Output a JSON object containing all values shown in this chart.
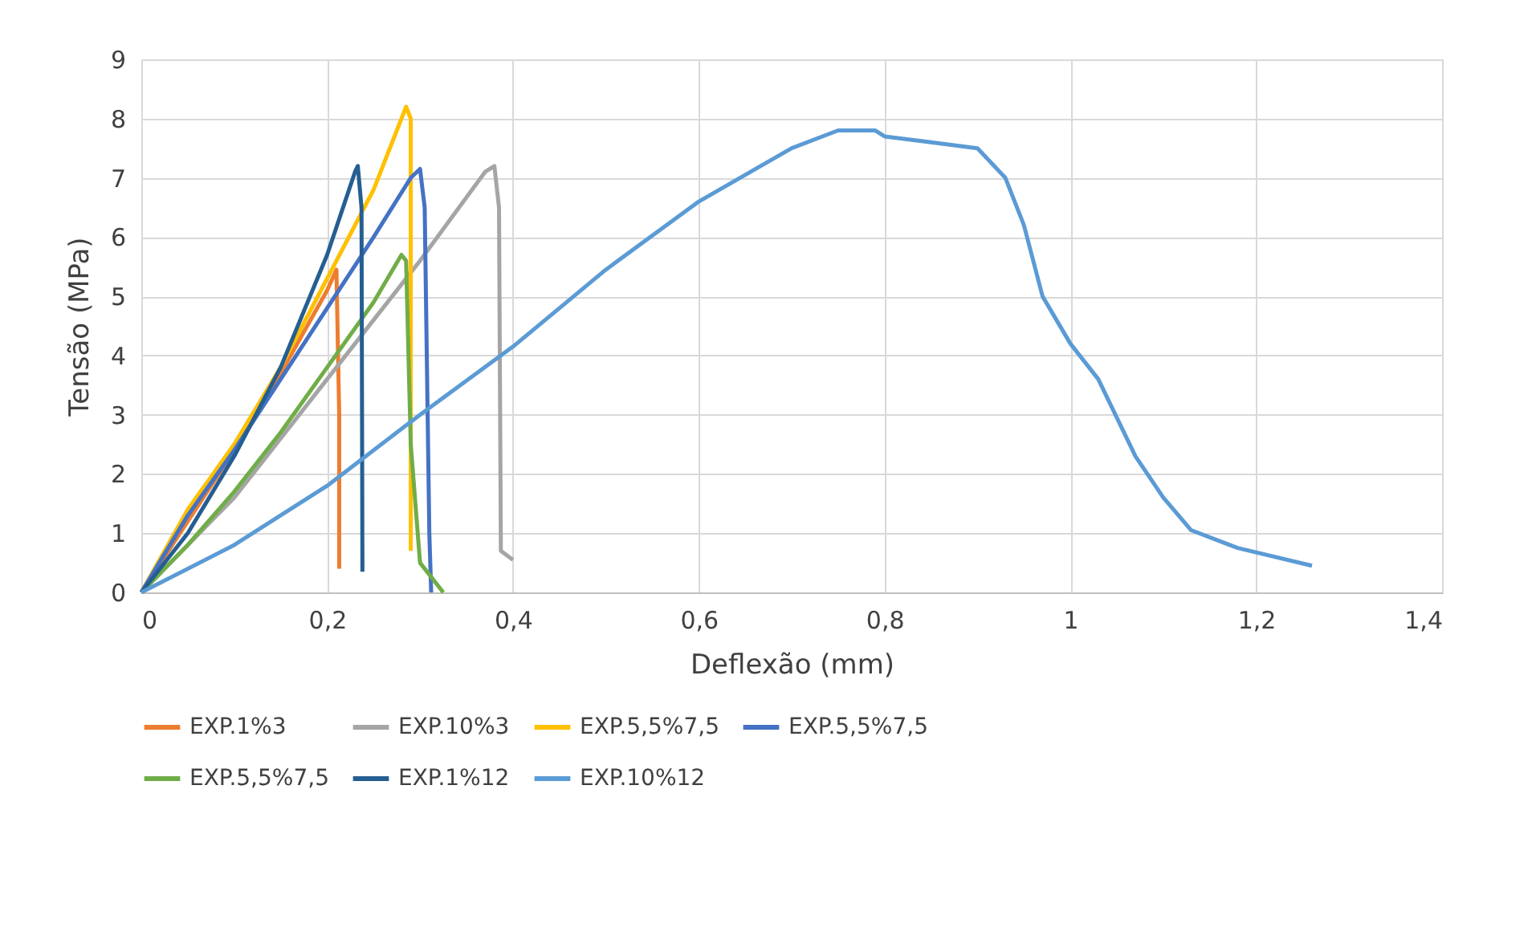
{
  "chart_data": {
    "type": "line",
    "xlabel": "Deflexão (mm)",
    "ylabel": "Tensão (MPa)",
    "xlim": [
      0,
      1.4
    ],
    "ylim": [
      0,
      9
    ],
    "xticks": [
      0,
      {
        "value": 0.2,
        "label": "0,2"
      },
      {
        "value": 0.4,
        "label": "0,4"
      },
      {
        "value": 0.6,
        "label": "0,6"
      },
      {
        "value": 0.8,
        "label": "0,8"
      },
      1,
      {
        "value": 1.2,
        "label": "1,2"
      },
      {
        "value": 1.4,
        "label": "1,4"
      }
    ],
    "yticks": [
      0,
      1,
      2,
      3,
      4,
      5,
      6,
      7,
      8,
      9
    ],
    "grid": true,
    "legend": "bottom",
    "marker": "none",
    "line_style": "solid",
    "series": [
      {
        "name": "EXP.1%3",
        "color": "#ed7d31",
        "x": [
          0,
          0.05,
          0.1,
          0.15,
          0.2,
          0.21,
          0.213,
          0.213
        ],
        "values": [
          0,
          1.2,
          2.4,
          3.7,
          5.1,
          5.45,
          3,
          0.4
        ]
      },
      {
        "name": "EXP.10%3",
        "color": "#a5a5a5",
        "x": [
          0,
          0.1,
          0.2,
          0.3,
          0.37,
          0.38,
          0.385,
          0.387,
          0.4
        ],
        "values": [
          0,
          1.6,
          3.6,
          5.6,
          7.1,
          7.2,
          6.5,
          0.7,
          0.55
        ]
      },
      {
        "name": "EXP.5,5%7,5",
        "color": "#ffc000",
        "x": [
          0,
          0.05,
          0.1,
          0.15,
          0.2,
          0.25,
          0.285,
          0.29,
          0.29
        ],
        "values": [
          0,
          1.4,
          2.5,
          3.8,
          5.3,
          6.8,
          8.2,
          8.0,
          0.7
        ]
      },
      {
        "name": "EXP.5,5%7,5",
        "color": "#4472c4",
        "x": [
          0,
          0.05,
          0.1,
          0.15,
          0.2,
          0.25,
          0.29,
          0.3,
          0.305,
          0.31,
          0.312
        ],
        "values": [
          0,
          1.3,
          2.4,
          3.6,
          4.8,
          6.0,
          7.0,
          7.15,
          6.5,
          1.0,
          0
        ]
      },
      {
        "name": "EXP.5,5%7,5",
        "color": "#70ad47",
        "x": [
          0,
          0.05,
          0.1,
          0.15,
          0.2,
          0.25,
          0.28,
          0.285,
          0.29,
          0.3,
          0.325
        ],
        "values": [
          0,
          0.8,
          1.7,
          2.7,
          3.8,
          4.9,
          5.7,
          5.6,
          2.5,
          0.5,
          0
        ]
      },
      {
        "name": "EXP.1%12",
        "color": "#255e91",
        "x": [
          0,
          0.05,
          0.1,
          0.15,
          0.2,
          0.23,
          0.233,
          0.237,
          0.238
        ],
        "values": [
          0,
          1.0,
          2.3,
          3.8,
          5.7,
          7.1,
          7.2,
          6.5,
          0.35
        ]
      },
      {
        "name": "EXP.10%12",
        "color": "#5b9bd5",
        "x": [
          0,
          0.1,
          0.2,
          0.3,
          0.4,
          0.5,
          0.6,
          0.7,
          0.75,
          0.79,
          0.8,
          0.85,
          0.9,
          0.93,
          0.95,
          0.97,
          1.0,
          1.03,
          1.07,
          1.1,
          1.13,
          1.18,
          1.26
        ],
        "values": [
          0,
          0.8,
          1.8,
          3.0,
          4.15,
          5.45,
          6.6,
          7.5,
          7.8,
          7.8,
          7.7,
          7.6,
          7.5,
          7.0,
          6.2,
          5.0,
          4.2,
          3.6,
          2.3,
          1.6,
          1.05,
          0.75,
          0.45
        ]
      }
    ]
  }
}
